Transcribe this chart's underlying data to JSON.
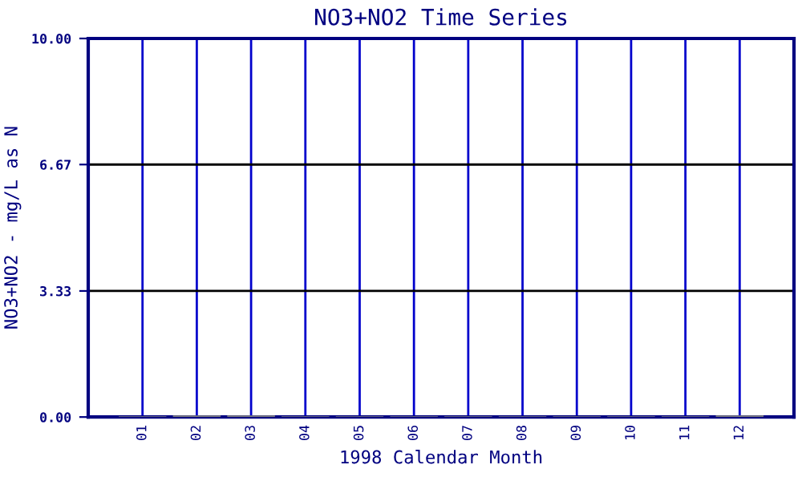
{
  "chart_data": {
    "type": "bar",
    "title": "NO3+NO2 Time Series",
    "xlabel": "1998 Calendar Month",
    "ylabel": "NO3+NO2 - mg/L as N",
    "categories": [
      "01",
      "02",
      "03",
      "04",
      "05",
      "06",
      "07",
      "08",
      "09",
      "10",
      "11",
      "12"
    ],
    "values": [
      0.02,
      0.04,
      0.04,
      0.02,
      0.02,
      0.02,
      0.02,
      0.02,
      0.02,
      0.02,
      0.02,
      0.04
    ],
    "color": "#808080",
    "ylim": [
      0,
      10
    ],
    "yticks": [
      {
        "value": 0,
        "label": "0.00"
      },
      {
        "value": 3.33,
        "label": "3.33"
      },
      {
        "value": 6.67,
        "label": "6.67"
      },
      {
        "value": 10,
        "label": "10.00"
      }
    ],
    "grid": true
  }
}
